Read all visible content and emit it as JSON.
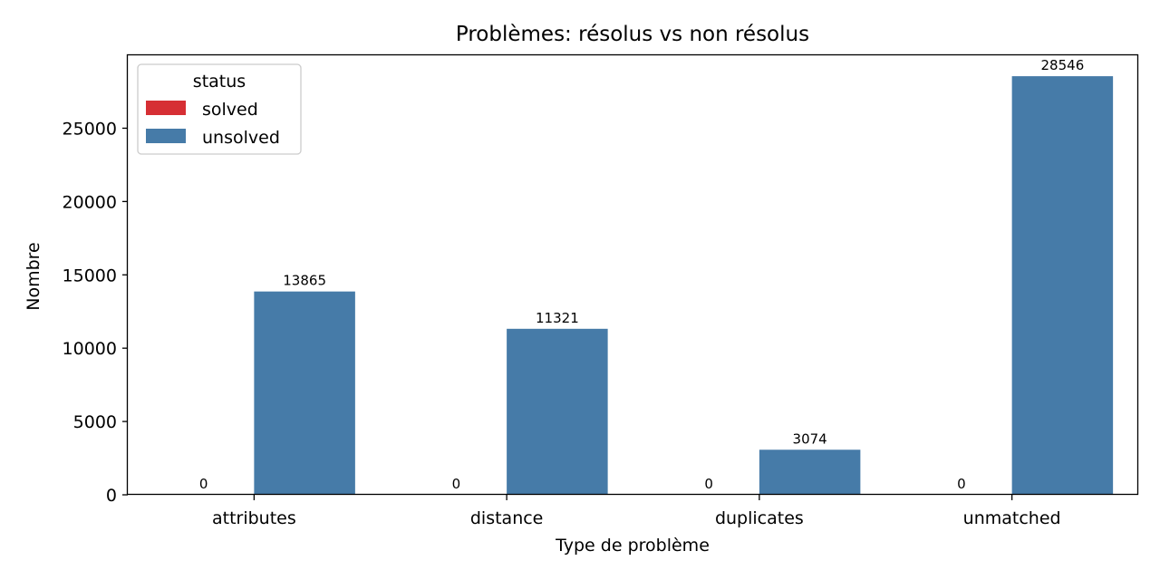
{
  "chart_data": {
    "type": "bar",
    "title": "Problèmes: résolus vs non résolus",
    "xlabel": "Type de problème",
    "ylabel": "Nombre",
    "categories": [
      "attributes",
      "distance",
      "duplicates",
      "unmatched"
    ],
    "series": [
      {
        "name": "solved",
        "values": [
          0,
          0,
          0,
          0
        ],
        "color": "#d62f34"
      },
      {
        "name": "unsolved",
        "values": [
          13865,
          11321,
          3074,
          28546
        ],
        "color": "#467ba8"
      }
    ],
    "ylim": [
      0,
      29973
    ],
    "yticks": [
      0,
      5000,
      10000,
      15000,
      20000,
      25000
    ],
    "grid": false,
    "legend": {
      "title": "status",
      "placement": "top-left"
    },
    "data_labels": true
  }
}
